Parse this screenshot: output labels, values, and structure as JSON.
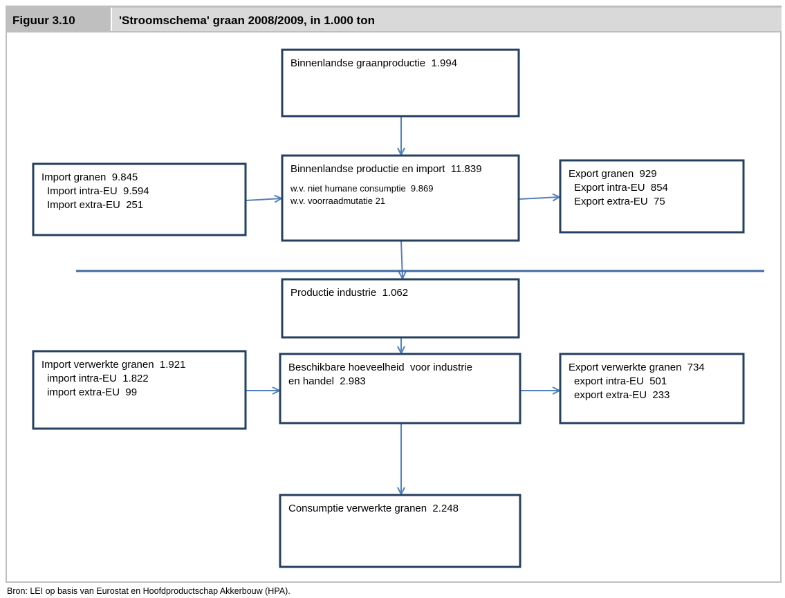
{
  "header": {
    "label": "Figuur 3.10",
    "title": "'Stroomschema' graan 2008/2009, in 1.000 ton"
  },
  "nodes": [
    {
      "lines": [
        "Binnenlandse graanproductie  1.994"
      ]
    },
    {
      "lines": [
        "Import granen  9.845"
      ],
      "sub": [
        "Import intra-EU  9.594",
        "Import extra-EU  251"
      ]
    },
    {
      "lines": [
        "Binnenlandse productie en import  11.839"
      ],
      "notes": [
        "w.v. niet humane consumptie  9.869",
        "w.v. voorraadmutatie 21"
      ]
    },
    {
      "lines": [
        "Export granen  929"
      ],
      "sub": [
        "Export intra-EU  854",
        "Export extra-EU  75"
      ]
    },
    {
      "lines": [
        "Productie industrie  1.062"
      ]
    },
    {
      "lines": [
        "Import verwerkte granen  1.921"
      ],
      "sub": [
        "import intra-EU  1.822",
        "import extra-EU  99"
      ]
    },
    {
      "lines": [
        "Beschikbare hoeveelheid  voor industrie",
        "en handel  2.983"
      ]
    },
    {
      "lines": [
        "Export verwerkte granen  734"
      ],
      "sub": [
        "export intra-EU  501",
        "export extra-EU  233"
      ]
    },
    {
      "lines": [
        "Consumptie verwerkte granen  2.248"
      ]
    }
  ],
  "source": "Bron: LEI op basis van Eurostat en Hoofdproductschap Akkerbouw (HPA)."
}
